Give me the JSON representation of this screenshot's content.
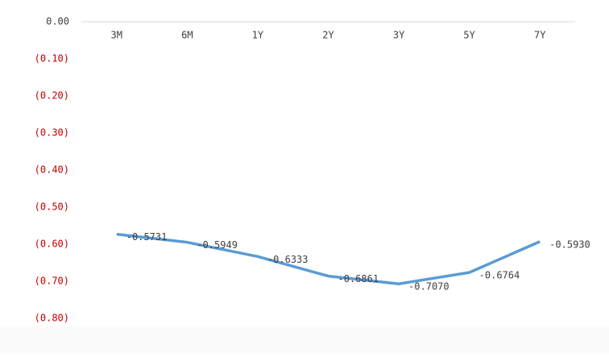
{
  "chart_data": {
    "type": "line",
    "categories": [
      "3M",
      "6M",
      "1Y",
      "2Y",
      "3Y",
      "5Y",
      "7Y"
    ],
    "series": [
      {
        "color": "#5b9bd5",
        "values": [
          -0.5731,
          -0.5949,
          -0.6333,
          -0.6861,
          -0.707,
          -0.6764,
          -0.593
        ],
        "value_labels": [
          "-0.5731",
          "-0.5949",
          "-0.6333",
          "-0.6861",
          "-0.7070",
          "-0.6764",
          "-0.5930"
        ]
      }
    ],
    "ylim": [
      -0.8,
      0
    ],
    "yticks": [
      {
        "value": 0,
        "label": "0.00"
      },
      {
        "value": -0.1,
        "label": "(0.10)"
      },
      {
        "value": -0.2,
        "label": "(0.20)"
      },
      {
        "value": -0.3,
        "label": "(0.30)"
      },
      {
        "value": -0.4,
        "label": "(0.40)"
      },
      {
        "value": -0.5,
        "label": "(0.50)"
      },
      {
        "value": -0.6,
        "label": "(0.60)"
      },
      {
        "value": -0.7,
        "label": "(0.70)"
      },
      {
        "value": -0.8,
        "label": "(0.80)"
      }
    ],
    "tick_color": "#404040",
    "negative_tick_color": "#c00000",
    "grid": false
  }
}
